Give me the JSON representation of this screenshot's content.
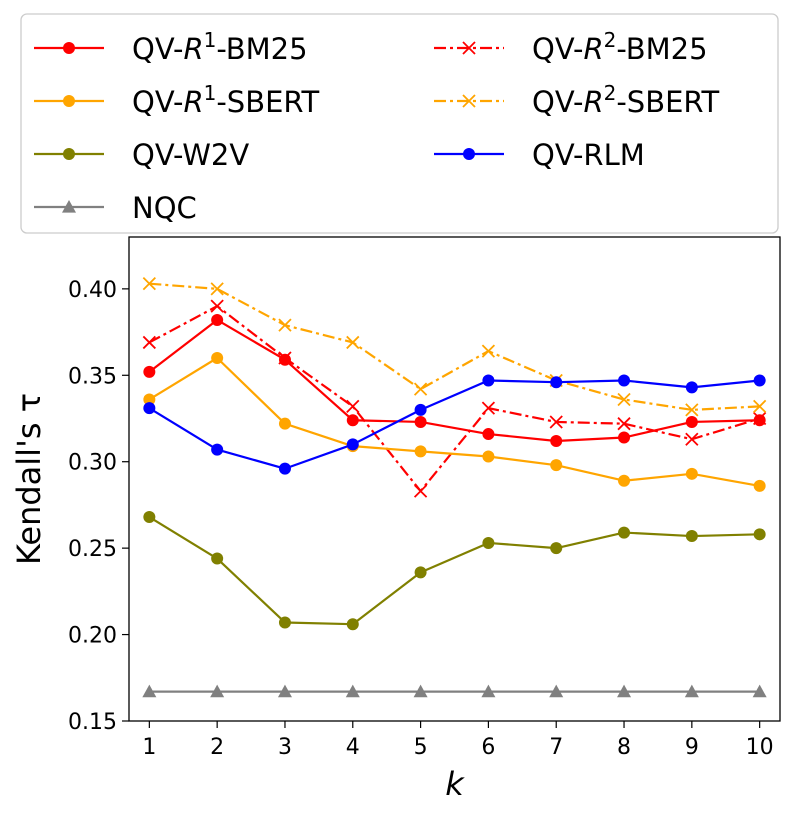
{
  "chart_data": {
    "type": "line",
    "title": "",
    "xlabel": "k",
    "ylabel": "Kendall's τ",
    "x": [
      1,
      2,
      3,
      4,
      5,
      6,
      7,
      8,
      9,
      10
    ],
    "xlim": [
      0.7,
      10.3
    ],
    "ylim": [
      0.15,
      0.43
    ],
    "yticks": [
      0.15,
      0.2,
      0.25,
      0.3,
      0.35,
      0.4
    ],
    "ytick_labels": [
      "0.15",
      "0.20",
      "0.25",
      "0.30",
      "0.35",
      "0.40"
    ],
    "xtick_labels": [
      "1",
      "2",
      "3",
      "4",
      "5",
      "6",
      "7",
      "8",
      "9",
      "10"
    ],
    "grid": false,
    "legend_position": "top",
    "series": [
      {
        "name": "QV-R1-BM25",
        "label_prefix": "QV-",
        "label_r": "R",
        "label_sup": "1",
        "label_suffix": "-BM25",
        "color": "#ff0000",
        "dash": "solid",
        "marker": "circle",
        "values": [
          0.352,
          0.382,
          0.359,
          0.324,
          0.323,
          0.316,
          0.312,
          0.314,
          0.323,
          0.324
        ]
      },
      {
        "name": "QV-R2-BM25",
        "label_prefix": "QV-",
        "label_r": "R",
        "label_sup": "2",
        "label_suffix": "-BM25",
        "color": "#ff0000",
        "dash": "dashdot",
        "marker": "x",
        "values": [
          0.369,
          0.39,
          0.36,
          0.332,
          0.283,
          0.331,
          0.323,
          0.322,
          0.313,
          0.325
        ]
      },
      {
        "name": "QV-R1-SBERT",
        "label_prefix": "QV-",
        "label_r": "R",
        "label_sup": "1",
        "label_suffix": "-SBERT",
        "color": "#ffa500",
        "dash": "solid",
        "marker": "circle",
        "values": [
          0.336,
          0.36,
          0.322,
          0.309,
          0.306,
          0.303,
          0.298,
          0.289,
          0.293,
          0.286
        ]
      },
      {
        "name": "QV-R2-SBERT",
        "label_prefix": "QV-",
        "label_r": "R",
        "label_sup": "2",
        "label_suffix": "-SBERT",
        "color": "#ffa500",
        "dash": "dashdot",
        "marker": "x",
        "values": [
          0.403,
          0.4,
          0.379,
          0.369,
          0.342,
          0.364,
          0.347,
          0.336,
          0.33,
          0.332
        ]
      },
      {
        "name": "QV-W2V",
        "label_prefix": "QV-W2V",
        "label_r": "",
        "label_sup": "",
        "label_suffix": "",
        "color": "#808000",
        "dash": "solid",
        "marker": "circle",
        "values": [
          0.268,
          0.244,
          0.207,
          0.206,
          0.236,
          0.253,
          0.25,
          0.259,
          0.257,
          0.258
        ]
      },
      {
        "name": "QV-RLM",
        "label_prefix": "QV-RLM",
        "label_r": "",
        "label_sup": "",
        "label_suffix": "",
        "color": "#0000ff",
        "dash": "solid",
        "marker": "circle",
        "values": [
          0.331,
          0.307,
          0.296,
          0.31,
          0.33,
          0.347,
          0.346,
          0.347,
          0.343,
          0.347
        ]
      },
      {
        "name": "NQC",
        "label_prefix": "NQC",
        "label_r": "",
        "label_sup": "",
        "label_suffix": "",
        "color": "#808080",
        "dash": "solid",
        "marker": "triangle",
        "values": [
          0.167,
          0.167,
          0.167,
          0.167,
          0.167,
          0.167,
          0.167,
          0.167,
          0.167,
          0.167
        ]
      }
    ],
    "legend_order": [
      "QV-R1-BM25",
      "QV-R1-SBERT",
      "QV-W2V",
      "NQC",
      "QV-R2-BM25",
      "QV-R2-SBERT",
      "QV-RLM"
    ]
  }
}
